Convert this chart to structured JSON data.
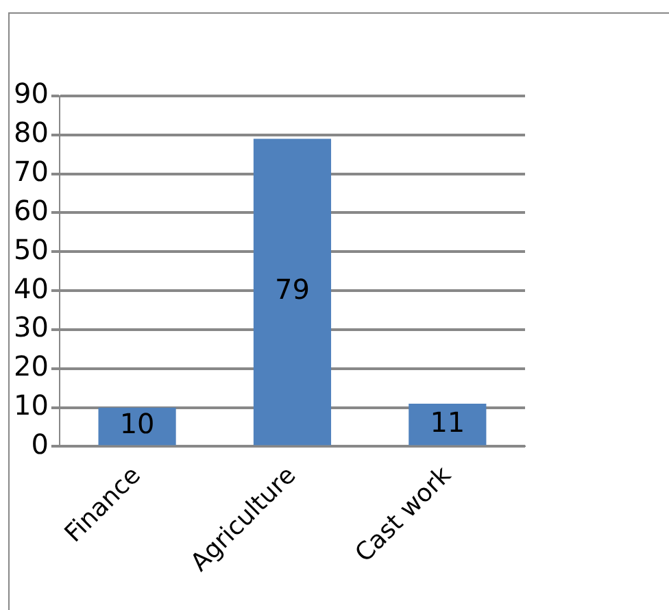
{
  "chart_data": {
    "type": "bar",
    "categories": [
      "Finance",
      "Agriculture",
      "Cast work"
    ],
    "values": [
      10,
      79,
      11
    ],
    "color": "#4f81bd",
    "ylim": [
      0,
      90
    ],
    "yticks": [
      0,
      10,
      20,
      30,
      40,
      50,
      60,
      70,
      80,
      90
    ],
    "grid": "y",
    "data_labels": true,
    "legend": false
  }
}
